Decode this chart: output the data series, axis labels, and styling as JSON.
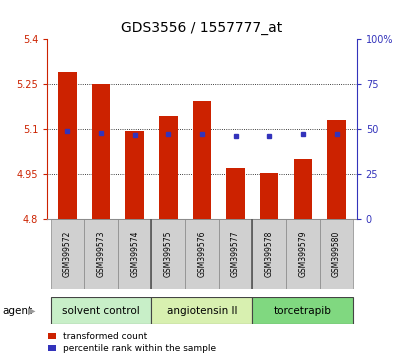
{
  "title": "GDS3556 / 1557777_at",
  "samples": [
    "GSM399572",
    "GSM399573",
    "GSM399574",
    "GSM399575",
    "GSM399576",
    "GSM399577",
    "GSM399578",
    "GSM399579",
    "GSM399580"
  ],
  "red_values": [
    5.29,
    5.25,
    5.093,
    5.145,
    5.195,
    4.97,
    4.955,
    5.0,
    5.13
  ],
  "blue_values": [
    5.093,
    5.087,
    5.082,
    5.083,
    5.083,
    5.078,
    5.078,
    5.083,
    5.083
  ],
  "base": 4.8,
  "ylim_left": [
    4.8,
    5.4
  ],
  "ylim_right": [
    0,
    100
  ],
  "yticks_left": [
    4.8,
    4.95,
    5.1,
    5.25,
    5.4
  ],
  "yticks_right": [
    0,
    25,
    50,
    75,
    100
  ],
  "ytick_labels_left": [
    "4.8",
    "4.95",
    "5.1",
    "5.25",
    "5.4"
  ],
  "ytick_labels_right": [
    "0",
    "25",
    "50",
    "75",
    "100%"
  ],
  "grid_values": [
    4.95,
    5.1,
    5.25
  ],
  "agents": [
    {
      "label": "solvent control",
      "start": 0,
      "end": 3,
      "color": "#c8efc8"
    },
    {
      "label": "angiotensin II",
      "start": 3,
      "end": 6,
      "color": "#d8f0b0"
    },
    {
      "label": "torcetrapib",
      "start": 6,
      "end": 9,
      "color": "#80d880"
    }
  ],
  "red_color": "#cc2200",
  "blue_color": "#3333bb",
  "bar_width": 0.55,
  "legend_red": "transformed count",
  "legend_blue": "percentile rank within the sample",
  "agent_label": "agent"
}
